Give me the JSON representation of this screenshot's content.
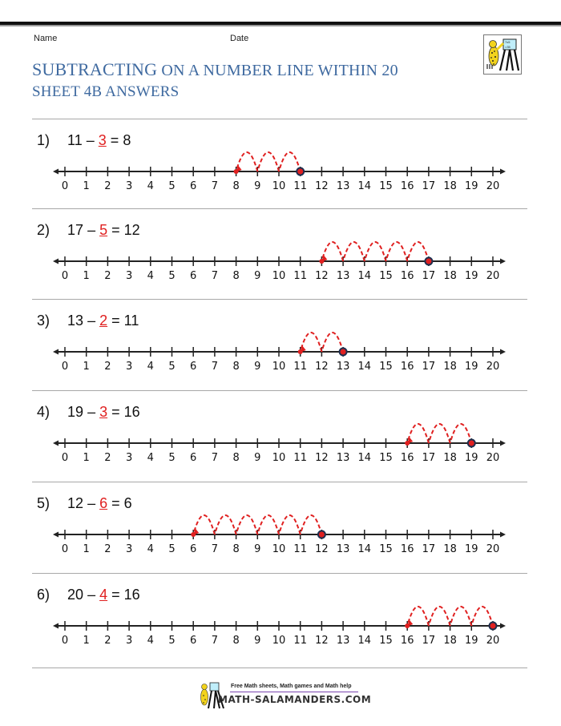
{
  "header": {
    "name_label": "Name",
    "date_label": "Date",
    "title_first_word": "SUBTRACTING",
    "title_rest": " ON A NUMBER LINE WITHIN 20",
    "subtitle": "SHEET 4B ANSWERS"
  },
  "colors": {
    "title": "#3f6aa0",
    "answer_red": "#e02020",
    "start_dot": "#1f2f4f",
    "line": "#222222"
  },
  "number_line": {
    "min": 0,
    "max": 20,
    "tick_labels": [
      "0",
      "1",
      "2",
      "3",
      "4",
      "5",
      "6",
      "7",
      "8",
      "9",
      "10",
      "11",
      "12",
      "13",
      "14",
      "15",
      "16",
      "17",
      "18",
      "19",
      "20"
    ]
  },
  "problems": [
    {
      "number": "1)",
      "start": "11",
      "op": "–",
      "subtract": "3",
      "eq": "=",
      "result": "8"
    },
    {
      "number": "2)",
      "start": "17",
      "op": "–",
      "subtract": "5",
      "eq": "=",
      "result": "12"
    },
    {
      "number": "3)",
      "start": "13",
      "op": "–",
      "subtract": "2",
      "eq": "=",
      "result": "11"
    },
    {
      "number": "4)",
      "start": "19",
      "op": "–",
      "subtract": "3",
      "eq": "=",
      "result": "16"
    },
    {
      "number": "5)",
      "start": "12",
      "op": "–",
      "subtract": "6",
      "eq": "=",
      "result": "6"
    },
    {
      "number": "6)",
      "start": "20",
      "op": "–",
      "subtract": "4",
      "eq": "=",
      "result": "16"
    }
  ],
  "footer": {
    "tagline": "Free Math sheets, Math games and Math help",
    "brand": "MATH-SALAMANDERS.COM"
  },
  "icons": {
    "header_logo": "salamander-at-easel-icon",
    "footer_logo": "salamander-logo-icon"
  }
}
